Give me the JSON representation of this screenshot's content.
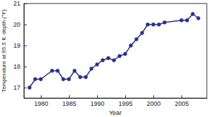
{
  "chart_data": {
    "type": "line",
    "x_label": "Year",
    "y_label": "Temperature at 65.5 ft. depth (°F)",
    "x": [
      1978,
      1979,
      1980,
      1982,
      1983,
      1984,
      1985,
      1986,
      1987,
      1988,
      1989,
      1990,
      1991,
      1992,
      1993,
      1994,
      1995,
      1996,
      1997,
      1998,
      1999,
      2000,
      2001,
      2002,
      2005,
      2006,
      2007,
      2008
    ],
    "y": [
      17.0,
      17.4,
      17.4,
      17.8,
      17.8,
      17.4,
      17.4,
      17.8,
      17.5,
      17.5,
      17.9,
      18.1,
      18.3,
      18.4,
      18.3,
      18.5,
      18.6,
      19.0,
      19.3,
      19.6,
      20.0,
      20.0,
      20.0,
      20.1,
      20.2,
      20.2,
      20.5,
      20.3
    ],
    "color": "#2b2f8c",
    "marker": "circle",
    "line_style": "solid",
    "xlim": [
      1977,
      2009.5
    ],
    "ylim": [
      16.5,
      21
    ],
    "xticks": [
      1980,
      1985,
      1990,
      1995,
      2000,
      2005
    ],
    "yticks": [
      17,
      18,
      19,
      20,
      21
    ]
  }
}
